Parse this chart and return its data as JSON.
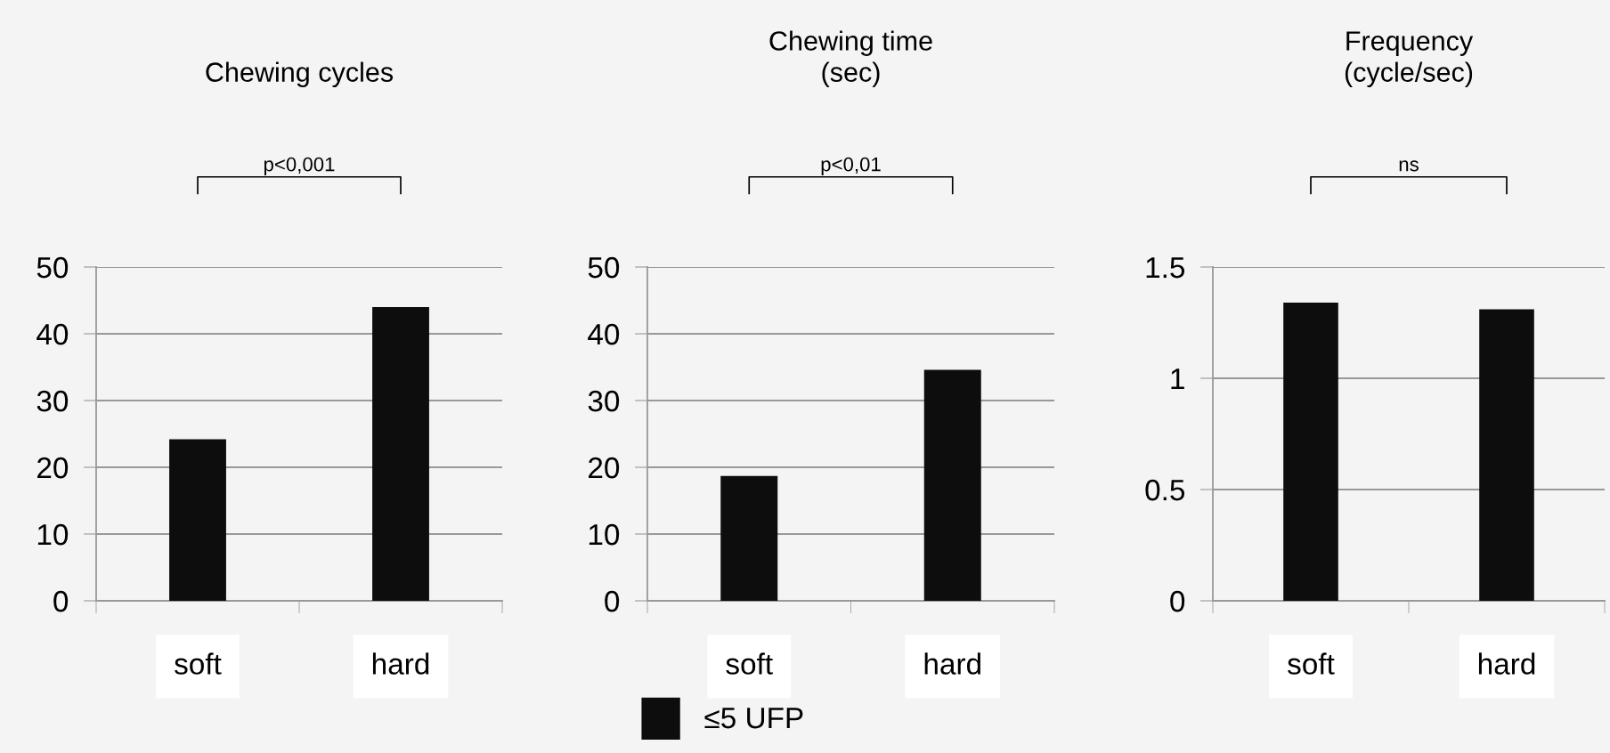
{
  "chart_data": [
    {
      "type": "bar",
      "title": "Chewing cycles",
      "categories": [
        "soft",
        "hard"
      ],
      "series": [
        {
          "color": "#0d0d0d",
          "values": [
            24.2,
            44.0
          ]
        }
      ],
      "ylim": [
        0,
        50
      ],
      "yticks": [
        0,
        10,
        20,
        30,
        40,
        50
      ],
      "grid": "y",
      "legend": false,
      "annotations": [
        "p<0,001"
      ]
    },
    {
      "type": "bar",
      "title": "Chewing time\n(sec)",
      "categories": [
        "soft",
        "hard"
      ],
      "series": [
        {
          "name": "≤5 UFP",
          "color": "#0d0d0d",
          "values": [
            18.7,
            34.6
          ]
        }
      ],
      "ylim": [
        0,
        50
      ],
      "yticks": [
        0,
        10,
        20,
        30,
        40,
        50
      ],
      "grid": "y",
      "legend": "bottom",
      "annotations": [
        "p<0,01"
      ]
    },
    {
      "type": "bar",
      "title": "Frequency\n(cycle/sec)",
      "categories": [
        "soft",
        "hard"
      ],
      "series": [
        {
          "color": "#0d0d0d",
          "values": [
            1.34,
            1.31
          ]
        }
      ],
      "ylim": [
        0,
        1.5
      ],
      "yticks": [
        0,
        0.5,
        1,
        1.5
      ],
      "grid": "y",
      "legend": false,
      "annotations": [
        "ns"
      ]
    }
  ]
}
